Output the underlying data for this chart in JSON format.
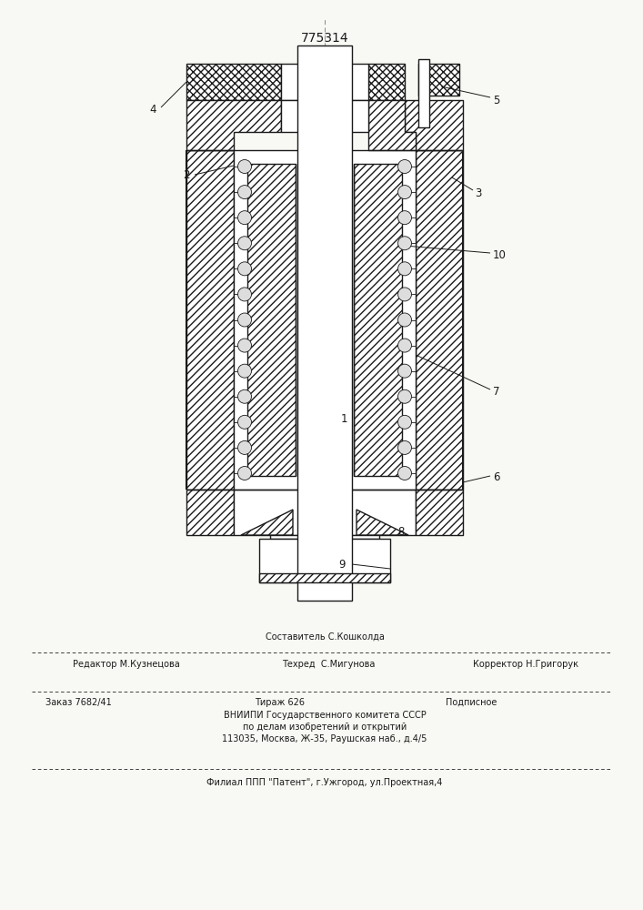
{
  "title_number": "775314",
  "bg_color": "#f8f8f4",
  "line_color": "#1a1a1a",
  "footer": {
    "line1_center": "Составитель С.Кошколда",
    "line2_left": "Редактор М.Кузнецова",
    "line2_mid": "Техред  С.Мигунова",
    "line2_right": "Корректор Н.Григорук",
    "line3_left": "Заказ 7682/41",
    "line3_mid": "Тираж 626",
    "line3_right": "Подписное",
    "line4": "ВНИИПИ Государственного комитета СССР",
    "line5": "по делам изобретений и открытий",
    "line6": "113035, Москва, Ж-35, Раушская наб., д.4/5",
    "line7": "Филиал ППП \"Патент\", г.Ужгород, ул.Проектная,4"
  }
}
